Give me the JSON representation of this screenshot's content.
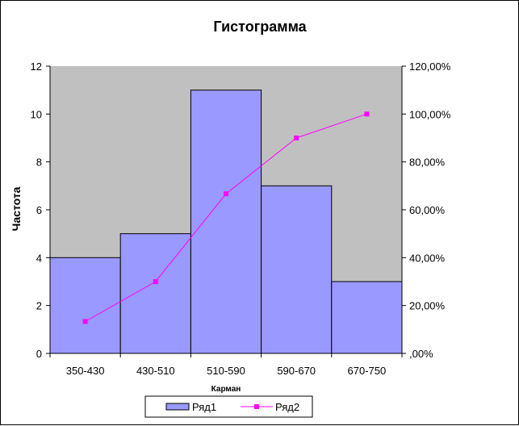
{
  "chart_data": {
    "type": "bar",
    "title": "Гистограмма",
    "xlabel": "Карман",
    "ylabel": "Частота",
    "categories": [
      "350-430",
      "430-510",
      "510-590",
      "590-670",
      "670-750"
    ],
    "series": [
      {
        "name": "Ряд1",
        "type": "bar",
        "axis": "left",
        "values": [
          4,
          5,
          11,
          7,
          3
        ]
      },
      {
        "name": "Ряд2",
        "type": "line",
        "axis": "right",
        "values": [
          0.1333,
          0.3,
          0.6667,
          0.9,
          1.0
        ]
      }
    ],
    "ylim": [
      0,
      12
    ],
    "yticks": [
      "0",
      "2",
      "4",
      "6",
      "8",
      "10",
      "12"
    ],
    "y2lim": [
      0,
      1.2
    ],
    "y2ticks": [
      ",00%",
      "20,00%",
      "40,00%",
      "60,00%",
      "80,00%",
      "100,00%",
      "120,00%"
    ],
    "grid": false,
    "legend": "bottom",
    "colors": {
      "plot_area": "#c0c0c0",
      "bar_fill": "#9999ff",
      "bar_stroke": "#000000",
      "line": "#ff00ff"
    }
  }
}
